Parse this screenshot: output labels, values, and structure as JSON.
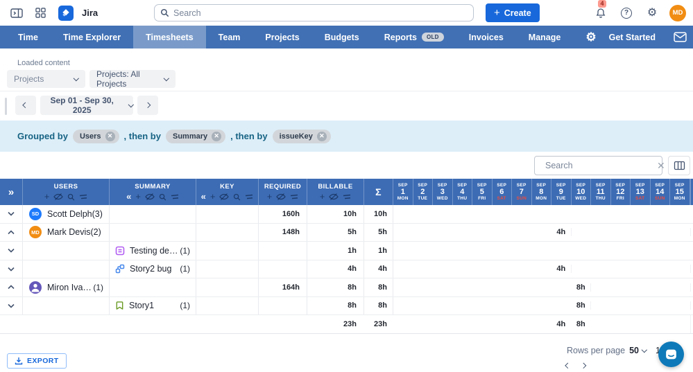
{
  "topbar": {
    "app_name": "Jira",
    "search_placeholder": "Search",
    "create_label": "Create",
    "notification_count": "4",
    "avatar_initials": "MD"
  },
  "nav": {
    "items": [
      {
        "label": "Time"
      },
      {
        "label": "Time Explorer"
      },
      {
        "label": "Timesheets",
        "active": true
      },
      {
        "label": "Team"
      },
      {
        "label": "Projects"
      },
      {
        "label": "Budgets"
      },
      {
        "label": "Reports",
        "badge": "OLD"
      },
      {
        "label": "Invoices"
      },
      {
        "label": "Manage"
      }
    ],
    "get_started_label": "Get Started"
  },
  "filters": {
    "loaded_content_label": "Loaded content",
    "scope_dropdown_value": "Projects",
    "projects_dropdown_value": "Projects: All Projects"
  },
  "period": {
    "range_label": "Sep 01 - Sep 30, 2025"
  },
  "grouping": {
    "prefix": "Grouped by",
    "separator": ", then by",
    "chips": [
      "Users",
      "Summary",
      "issueKey"
    ]
  },
  "table_toolbar": {
    "search_placeholder": "Search"
  },
  "table": {
    "columns": {
      "users": "USERS",
      "summary": "SUMMARY",
      "key": "KEY",
      "required": "REQUIRED",
      "billable": "BILLABLE",
      "sum": "Σ"
    },
    "days": [
      {
        "month": "SEP",
        "day": "1",
        "weekday": "MON",
        "weekend": false
      },
      {
        "month": "SEP",
        "day": "2",
        "weekday": "TUE",
        "weekend": false
      },
      {
        "month": "SEP",
        "day": "3",
        "weekday": "WED",
        "weekend": false
      },
      {
        "month": "SEP",
        "day": "4",
        "weekday": "THU",
        "weekend": false
      },
      {
        "month": "SEP",
        "day": "5",
        "weekday": "FRI",
        "weekend": false
      },
      {
        "month": "SEP",
        "day": "6",
        "weekday": "SAT",
        "weekend": true
      },
      {
        "month": "SEP",
        "day": "7",
        "weekday": "SUN",
        "weekend": true
      },
      {
        "month": "SEP",
        "day": "8",
        "weekday": "MON",
        "weekend": false
      },
      {
        "month": "SEP",
        "day": "9",
        "weekday": "TUE",
        "weekend": false
      },
      {
        "month": "SEP",
        "day": "10",
        "weekday": "WED",
        "weekend": false
      },
      {
        "month": "SEP",
        "day": "11",
        "weekday": "THU",
        "weekend": false
      },
      {
        "month": "SEP",
        "day": "12",
        "weekday": "FRI",
        "weekend": false
      },
      {
        "month": "SEP",
        "day": "13",
        "weekday": "SAT",
        "weekend": true
      },
      {
        "month": "SEP",
        "day": "14",
        "weekday": "SUN",
        "weekend": true
      },
      {
        "month": "SEP",
        "day": "15",
        "weekday": "MON",
        "weekend": false
      }
    ],
    "rows": [
      {
        "type": "user",
        "expanded": false,
        "avatar": "SD",
        "avatar_color": "#1d7afc",
        "name": "Scott Delph(3)",
        "required": "160h",
        "billable": "10h",
        "sum": "10h",
        "day_values": {}
      },
      {
        "type": "user",
        "expanded": true,
        "avatar": "MD",
        "avatar_color": "#f18d13",
        "name": "Mark Devis(2)",
        "required": "148h",
        "billable": "5h",
        "sum": "5h",
        "day_values": {
          "9": "4h"
        }
      },
      {
        "type": "issue",
        "expanded": false,
        "icon": "task",
        "summary": "Testing default op...",
        "count": "(1)",
        "required": "",
        "billable": "1h",
        "sum": "1h",
        "day_values": {}
      },
      {
        "type": "issue",
        "expanded": false,
        "icon": "subtask",
        "summary": "Story2 bug",
        "count": "(1)",
        "required": "",
        "billable": "4h",
        "sum": "4h",
        "day_values": {
          "9": "4h"
        }
      },
      {
        "type": "user",
        "expanded": true,
        "avatar": "person",
        "avatar_color": "#6457ba",
        "name": "Miron Ivano _Ti...",
        "count": "(1)",
        "required": "164h",
        "billable": "8h",
        "sum": "8h",
        "day_values": {
          "10": "8h"
        }
      },
      {
        "type": "issue",
        "expanded": false,
        "icon": "story",
        "summary": "Story1",
        "count": "(1)",
        "required": "",
        "billable": "8h",
        "sum": "8h",
        "day_values": {
          "10": "8h"
        }
      }
    ],
    "totals": {
      "billable": "23h",
      "sum": "23h",
      "day_values": {
        "9": "4h",
        "10": "8h"
      }
    }
  },
  "footer": {
    "export_label": "EXPORT",
    "rows_per_page_label": "Rows per page",
    "rows_per_page_value": "50",
    "page_indicator": "1"
  },
  "colors": {
    "nav_blue": "#4170b4",
    "table_header_blue": "#3d6cb4",
    "accent_blue": "#1868db",
    "weekend_red": "#ef4b3d",
    "grouped_bar_bg": "#ddeef8"
  }
}
